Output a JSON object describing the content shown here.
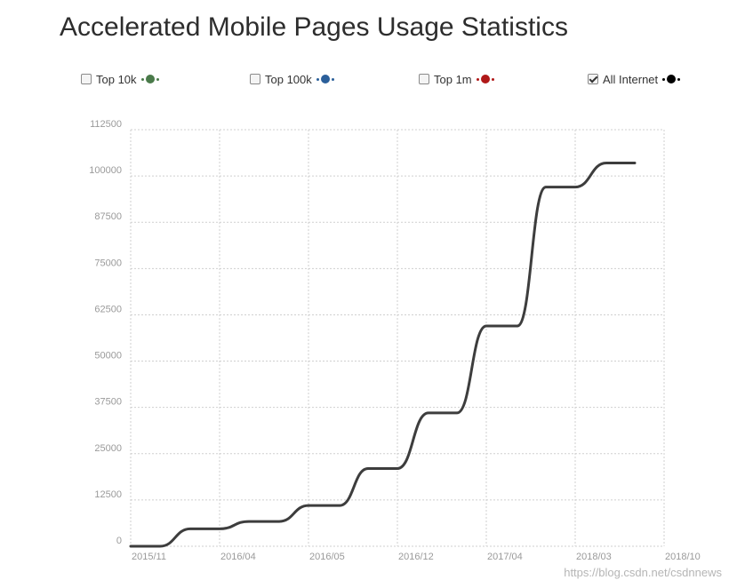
{
  "title": "Accelerated Mobile Pages Usage Statistics",
  "legend": [
    {
      "label": "Top 10k",
      "color": "#4a7a4a",
      "checked": false
    },
    {
      "label": "Top 100k",
      "color": "#2b5f9a",
      "checked": false
    },
    {
      "label": "Top 1m",
      "color": "#b01818",
      "checked": false
    },
    {
      "label": "All Internet",
      "color": "#000000",
      "checked": true
    }
  ],
  "watermark": "https://blog.csdn.net/csdnnews",
  "chart_data": {
    "type": "line",
    "title": "Accelerated Mobile Pages Usage Statistics",
    "xlabel": "",
    "ylabel": "",
    "x_ticks": [
      "2015/11",
      "2016/04",
      "2016/05",
      "2016/12",
      "2017/04",
      "2018/03",
      "2018/10"
    ],
    "y_ticks": [
      0,
      12500,
      25000,
      37500,
      50000,
      62500,
      75000,
      87500,
      100000,
      112500
    ],
    "ylim": [
      0,
      112500
    ],
    "grid": true,
    "legend_position": "top",
    "series": [
      {
        "name": "All Internet",
        "color": "#3d3d3d",
        "x": [
          0,
          0.33,
          0.67,
          1,
          1.33,
          1.67,
          2,
          2.35,
          2.67,
          3,
          3.35,
          3.67,
          4,
          4.35,
          4.67,
          5,
          5.35,
          5.67
        ],
        "values": [
          0,
          0,
          4700,
          4700,
          6700,
          6700,
          11000,
          11000,
          21000,
          21000,
          36000,
          36000,
          59500,
          59500,
          97000,
          97000,
          103500,
          103500
        ]
      }
    ]
  }
}
